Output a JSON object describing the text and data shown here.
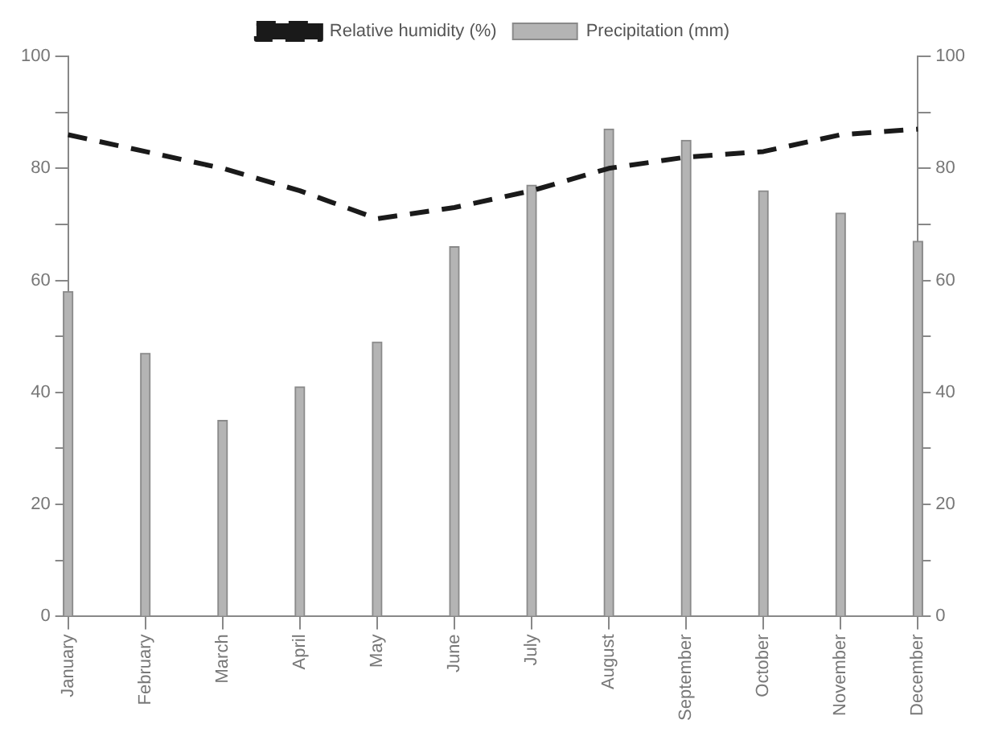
{
  "chart_data": {
    "type": "bar",
    "categories": [
      "January",
      "February",
      "March",
      "April",
      "May",
      "June",
      "July",
      "August",
      "September",
      "October",
      "November",
      "December"
    ],
    "series": [
      {
        "name": "Relative humidity (%)",
        "type": "line",
        "color": "#1a1a1a",
        "line_style": "dashed",
        "marker": "none",
        "values": [
          86,
          83,
          80,
          76,
          71,
          73,
          76,
          80,
          82,
          83,
          86,
          87
        ]
      },
      {
        "name": "Precipitation (mm)",
        "color": "#b4b4b4",
        "values": [
          58,
          47,
          35,
          41,
          49,
          66,
          77,
          87,
          85,
          76,
          72,
          67
        ]
      }
    ],
    "ylim": [
      0,
      100
    ],
    "yticks": [
      0,
      {
        "value": 10,
        "label": null
      },
      20,
      {
        "value": 30,
        "label": null
      },
      40,
      {
        "value": 50,
        "label": null
      },
      60,
      {
        "value": 70,
        "label": null
      },
      80,
      {
        "value": 90,
        "label": null
      },
      100
    ],
    "y2lim": [
      0,
      100
    ],
    "y2ticks": [
      0,
      {
        "value": 10,
        "label": null
      },
      20,
      {
        "value": 30,
        "label": null
      },
      40,
      {
        "value": 50,
        "label": null
      },
      60,
      {
        "value": 70,
        "label": null
      },
      80,
      {
        "value": 90,
        "label": null
      },
      100
    ],
    "grid": false,
    "legend": "top"
  }
}
